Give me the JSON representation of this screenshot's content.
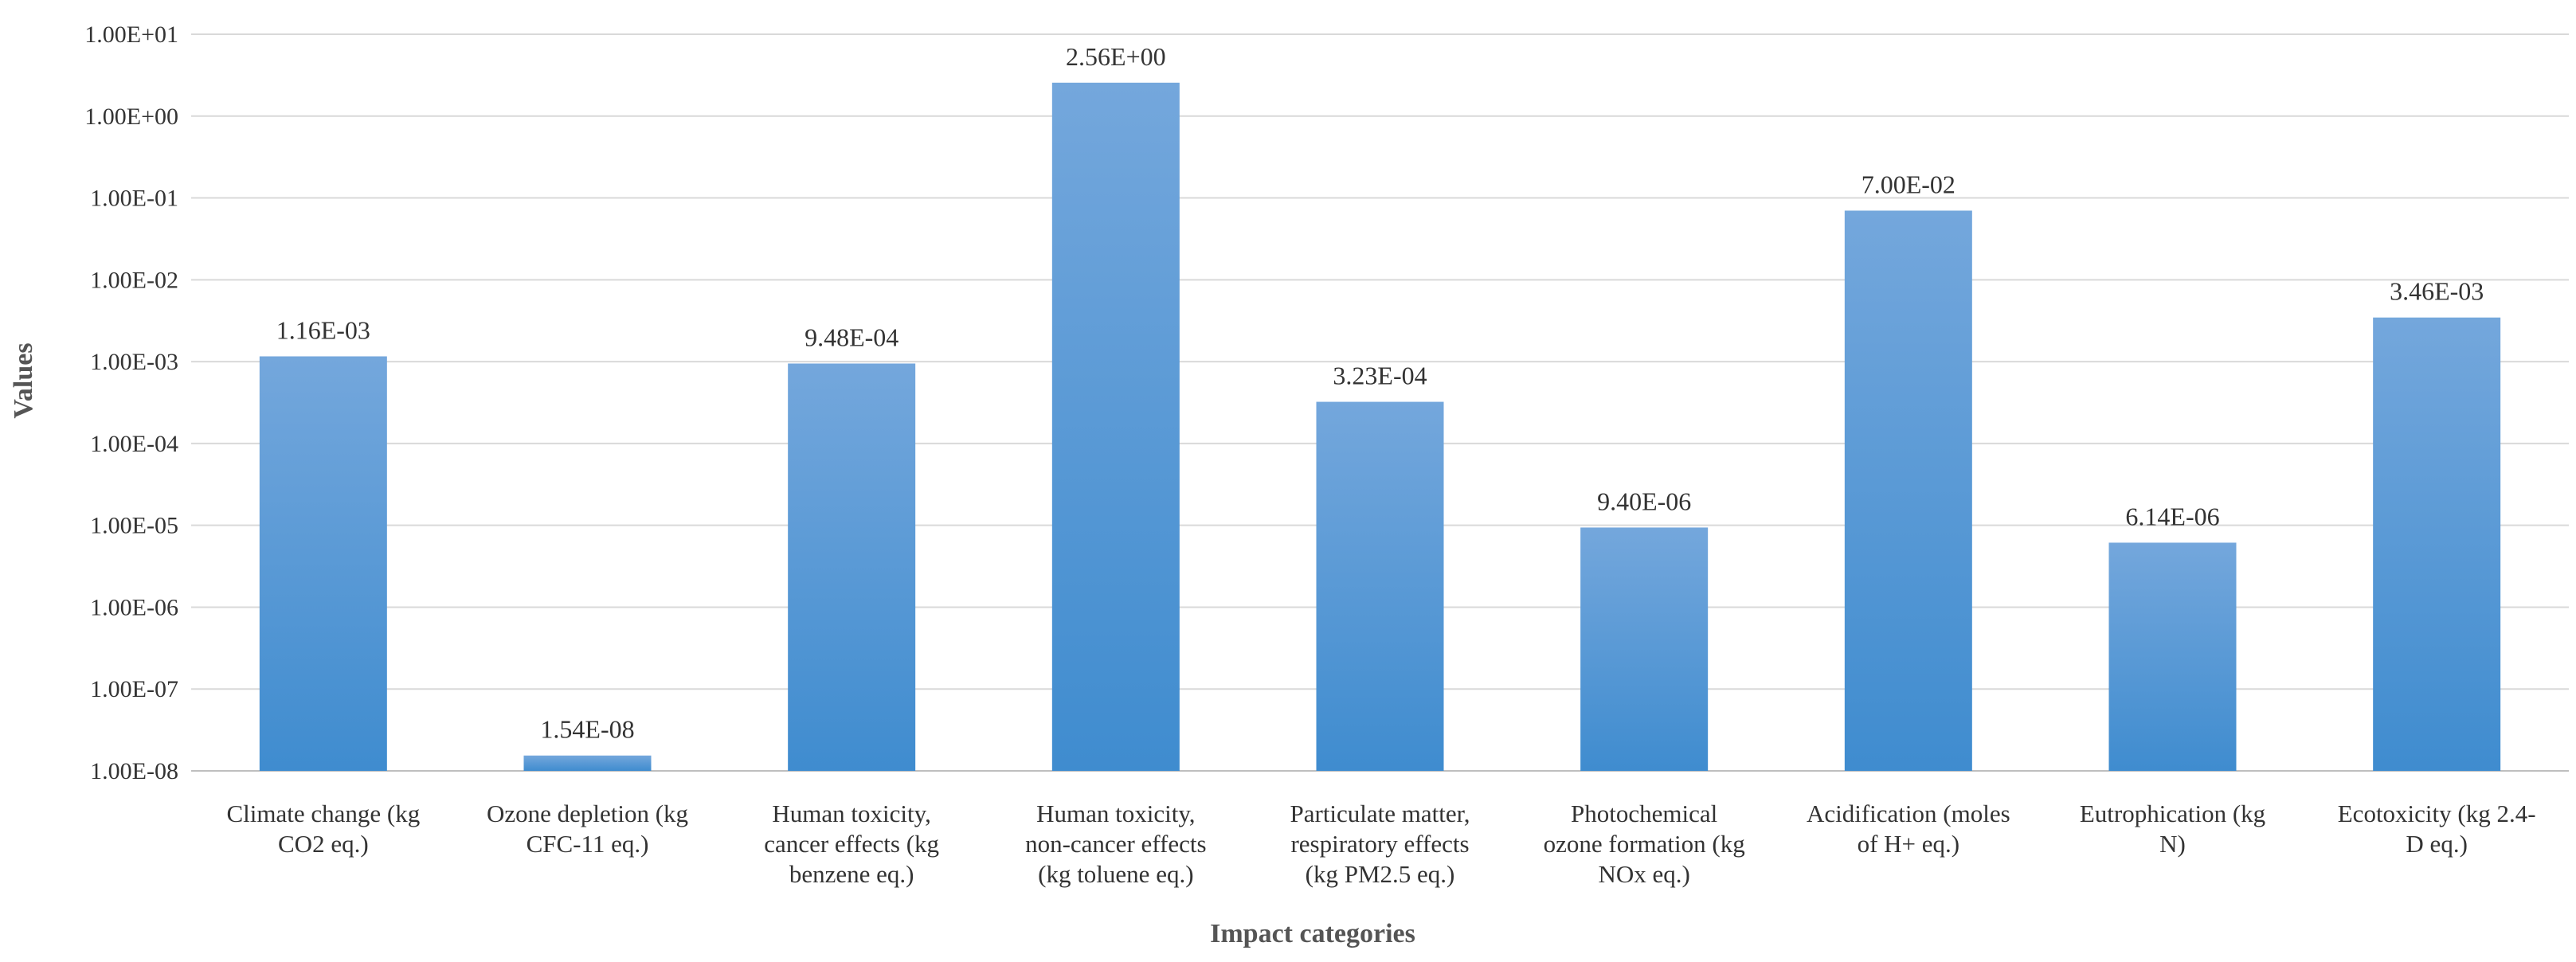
{
  "chart_data": {
    "type": "bar",
    "title": "",
    "xlabel": "Impact categories",
    "ylabel": "Values",
    "yscale": "log",
    "ylim": [
      1e-08,
      10
    ],
    "grid": true,
    "legend": "none",
    "y_ticks": [
      {
        "value": 10.0,
        "label": "1.00E+01"
      },
      {
        "value": 1.0,
        "label": "1.00E+00"
      },
      {
        "value": 0.1,
        "label": "1.00E-01"
      },
      {
        "value": 0.01,
        "label": "1.00E-02"
      },
      {
        "value": 0.001,
        "label": "1.00E-03"
      },
      {
        "value": 0.0001,
        "label": "1.00E-04"
      },
      {
        "value": 1e-05,
        "label": "1.00E-05"
      },
      {
        "value": 1e-06,
        "label": "1.00E-06"
      },
      {
        "value": 1e-07,
        "label": "1.00E-07"
      },
      {
        "value": 1e-08,
        "label": "1.00E-08"
      }
    ],
    "categories": [
      [
        "Climate change (kg",
        "CO2 eq.)"
      ],
      [
        "Ozone depletion (kg",
        "CFC-11 eq.)"
      ],
      [
        "Human toxicity,",
        "cancer effects (kg",
        "benzene eq.)"
      ],
      [
        "Human toxicity,",
        "non-cancer effects",
        "(kg toluene eq.)"
      ],
      [
        "Particulate matter,",
        "respiratory effects",
        "(kg PM2.5 eq.)"
      ],
      [
        "Photochemical",
        "ozone formation (kg",
        "NOx eq.)"
      ],
      [
        "Acidification (moles",
        "of H+ eq.)"
      ],
      [
        "Eutrophication (kg",
        "N)"
      ],
      [
        "Ecotoxicity (kg 2.4-",
        "D eq.)"
      ]
    ],
    "values": [
      0.00116,
      1.54e-08,
      0.000948,
      2.56,
      0.000323,
      9.4e-06,
      0.07,
      6.14e-06,
      0.00346
    ],
    "data_labels": [
      "1.16E-03",
      "1.54E-08",
      "9.48E-04",
      "2.56E+00",
      "3.23E-04",
      "9.40E-06",
      "7.00E-02",
      "6.14E-06",
      "3.46E-03"
    ],
    "colors": {
      "bar_top": "#74a7dc",
      "bar_bottom": "#3f8ccf",
      "grid": "#d9d9d9",
      "text": "#333333",
      "axis_title": "#555555"
    }
  }
}
